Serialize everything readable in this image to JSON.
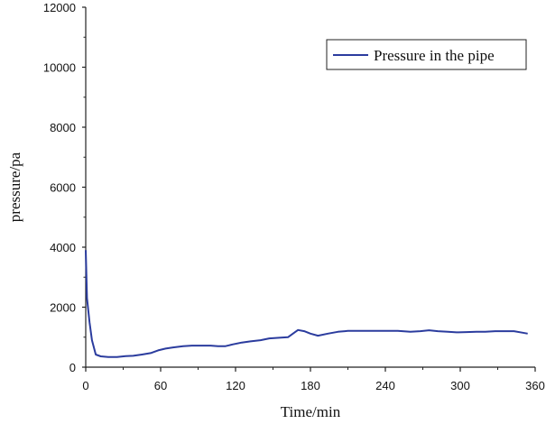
{
  "chart_data": {
    "type": "line",
    "title": "",
    "xlabel": "Time/min",
    "ylabel": "pressure/pa",
    "xlim": [
      0,
      360
    ],
    "ylim": [
      0,
      12000
    ],
    "xticks": [
      0,
      60,
      120,
      180,
      240,
      300,
      360
    ],
    "yticks": [
      0,
      2000,
      4000,
      6000,
      8000,
      10000,
      12000
    ],
    "xtick_labels": [
      "0",
      "60",
      "120",
      "180",
      "240",
      "300",
      "360"
    ],
    "ytick_labels": [
      "0",
      "2000",
      "4000",
      "6000",
      "8000",
      "10000",
      "12000"
    ],
    "grid": false,
    "legend_position": "top-right",
    "series": [
      {
        "name": "Pressure in the pipe",
        "color": "#2b3c9e",
        "x": [
          0,
          1,
          3,
          5,
          8,
          12,
          18,
          25,
          32,
          38,
          45,
          52,
          58,
          64,
          70,
          78,
          85,
          92,
          100,
          106,
          112,
          118,
          125,
          132,
          140,
          147,
          155,
          162,
          167,
          170,
          175,
          180,
          186,
          194,
          202,
          210,
          220,
          230,
          240,
          250,
          260,
          268,
          275,
          282,
          290,
          297,
          305,
          313,
          320,
          328,
          336,
          343,
          350,
          354
        ],
        "y": [
          3900,
          2300,
          1500,
          900,
          420,
          360,
          340,
          340,
          370,
          380,
          420,
          470,
          560,
          620,
          660,
          700,
          720,
          720,
          720,
          700,
          700,
          760,
          820,
          860,
          900,
          960,
          980,
          1000,
          1150,
          1240,
          1200,
          1120,
          1050,
          1120,
          1180,
          1210,
          1210,
          1210,
          1210,
          1210,
          1180,
          1200,
          1230,
          1200,
          1180,
          1160,
          1170,
          1180,
          1180,
          1200,
          1200,
          1200,
          1150,
          1120
        ]
      }
    ]
  }
}
